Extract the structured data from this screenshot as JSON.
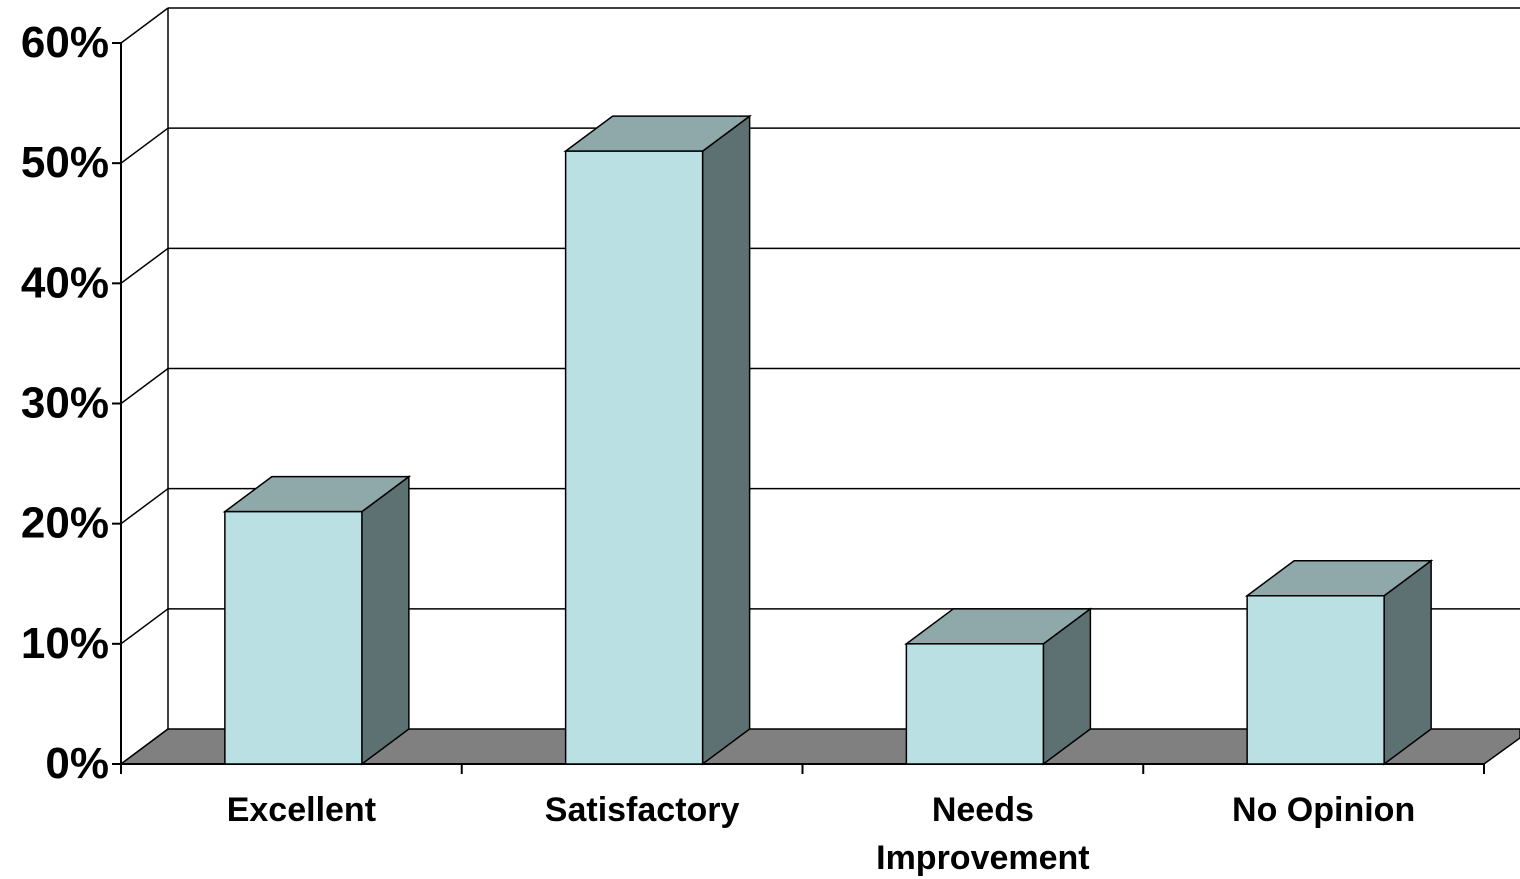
{
  "chart_data": {
    "type": "bar",
    "style": "3d-column",
    "categories": [
      "Excellent",
      "Satisfactory",
      "Needs Improvement",
      "No Opinion"
    ],
    "category_lines": [
      [
        "Excellent"
      ],
      [
        "Satisfactory"
      ],
      [
        "Needs",
        "Improvement"
      ],
      [
        "No Opinion"
      ]
    ],
    "values": [
      21,
      51,
      10,
      14
    ],
    "ylim": [
      0,
      60
    ],
    "yticks": [
      0,
      10,
      20,
      30,
      40,
      50,
      60
    ],
    "ytick_labels": [
      "0%",
      "10%",
      "20%",
      "30%",
      "40%",
      "50%",
      "60%"
    ],
    "grid": true,
    "title": "",
    "xlabel": "",
    "ylabel": "",
    "colors": {
      "bar_front": "#bae0e3",
      "bar_top": "#8fa8aa",
      "bar_side": "#5d7072",
      "floor": "#808080",
      "gridline": "#000000"
    }
  }
}
